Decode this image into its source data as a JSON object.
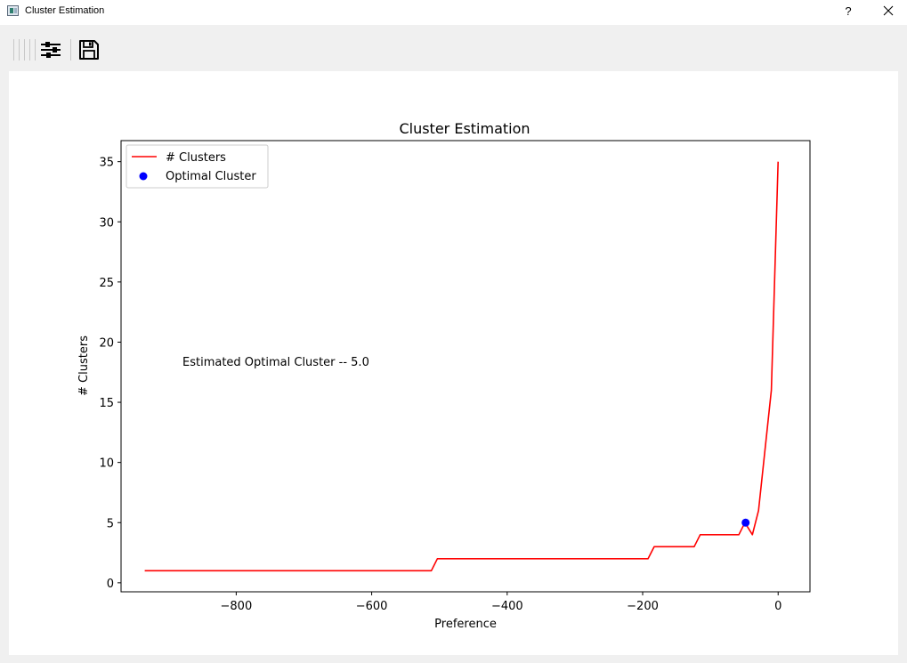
{
  "window": {
    "title": "Cluster Estimation",
    "help_label": "?"
  },
  "toolbar": {
    "buttons": [
      {
        "name": "configure-subplots-button",
        "icon": "sliders-icon"
      },
      {
        "name": "save-button",
        "icon": "floppy-disk-icon"
      }
    ]
  },
  "chart_data": {
    "type": "line",
    "title": "Cluster Estimation",
    "xlabel": "Preference",
    "ylabel": "# Clusters",
    "xlim": [
      -970,
      47
    ],
    "ylim": [
      -0.75,
      36.75
    ],
    "xticks": [
      -800,
      -600,
      -400,
      -200,
      0
    ],
    "xtick_labels": [
      "−800",
      "−600",
      "−400",
      "−200",
      "0"
    ],
    "yticks": [
      0,
      5,
      10,
      15,
      20,
      25,
      30,
      35
    ],
    "ytick_labels": [
      "0",
      "5",
      "10",
      "15",
      "20",
      "25",
      "30",
      "35"
    ],
    "grid": false,
    "legend": {
      "position": "top-left"
    },
    "series": [
      {
        "name": "# Clusters",
        "kind": "line",
        "color": "#ff0000",
        "x": [
          -935,
          -512,
          -503,
          -192,
          -183,
          -124,
          -115,
          -58,
          -49,
          -38,
          -29,
          -10,
          0
        ],
        "y": [
          1,
          1,
          2,
          2,
          3,
          3,
          4,
          4,
          5,
          4,
          6,
          16,
          35
        ]
      },
      {
        "name": "Optimal Cluster",
        "kind": "scatter",
        "color": "#0000ff",
        "x": [
          -48
        ],
        "y": [
          5
        ]
      }
    ],
    "annotations": [
      {
        "text": "Estimated Optimal Cluster -- 5.0",
        "x": -888,
        "y": 18
      }
    ]
  }
}
